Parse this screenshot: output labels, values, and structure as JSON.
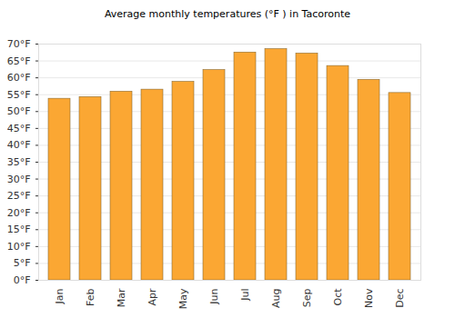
{
  "chart_data": {
    "type": "bar",
    "title": "Average monthly temperatures (°F ) in Tacoronte",
    "categories": [
      "Jan",
      "Feb",
      "Mar",
      "Apr",
      "May",
      "Jun",
      "Jul",
      "Aug",
      "Sep",
      "Oct",
      "Nov",
      "Dec"
    ],
    "values": [
      53.8,
      54.3,
      55.9,
      56.5,
      58.8,
      62.3,
      67.5,
      68.5,
      67.2,
      63.5,
      59.4,
      55.5
    ],
    "color": "#fba733",
    "ylim": [
      0,
      70
    ],
    "yticks": [
      {
        "value": 0,
        "label": "0°F"
      },
      {
        "value": 5,
        "label": "5°F"
      },
      {
        "value": 10,
        "label": "10°F"
      },
      {
        "value": 15,
        "label": "15°F"
      },
      {
        "value": 20,
        "label": "20°F"
      },
      {
        "value": 25,
        "label": "25°F"
      },
      {
        "value": 30,
        "label": "30°F"
      },
      {
        "value": 35,
        "label": "35°F"
      },
      {
        "value": 40,
        "label": "40°F"
      },
      {
        "value": 45,
        "label": "45°F"
      },
      {
        "value": 50,
        "label": "50°F"
      },
      {
        "value": 55,
        "label": "55°F"
      },
      {
        "value": 60,
        "label": "60°F"
      },
      {
        "value": 65,
        "label": "65°F"
      },
      {
        "value": 70,
        "label": "70°F"
      }
    ],
    "grid": true
  }
}
